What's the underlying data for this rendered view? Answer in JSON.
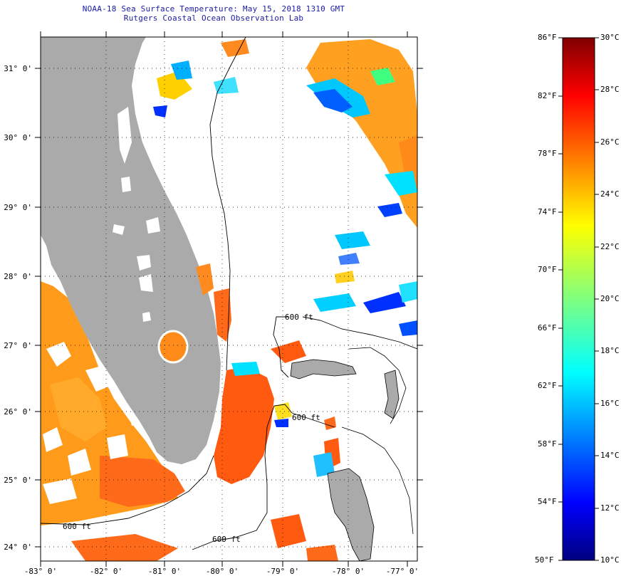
{
  "header": {
    "title_line1": "NOAA-18 Sea Surface Temperature:  May 15, 2018 1310 GMT",
    "title_line2": "Rutgers Coastal Ocean Observation Lab"
  },
  "map": {
    "lon_labels": [
      "-83° 0'",
      "-82° 0'",
      "-81° 0'",
      "-80° 0'",
      "-79° 0'",
      "-78° 0'",
      "-77° 0'"
    ],
    "lat_labels": [
      "31° 0'",
      "30° 0'",
      "29° 0'",
      "28° 0'",
      "27° 0'",
      "26° 0'",
      "25° 0'",
      "24° 0'"
    ],
    "contour_labels": [
      "600 ft",
      "600 ft",
      "600 ft",
      "600 ft"
    ],
    "colors": {
      "land": "#aaaaaa",
      "ocean_cloud": "#ffffff",
      "warm_sst": "#ff6a1a",
      "gulf_sst": "#ff9a1a"
    }
  },
  "colorbar": {
    "fahrenheit_labels": [
      "86°F",
      "82°F",
      "78°F",
      "74°F",
      "70°F",
      "66°F",
      "62°F",
      "58°F",
      "54°F",
      "50°F"
    ],
    "celsius_labels": [
      "30°C",
      "28°C",
      "26°C",
      "24°C",
      "22°C",
      "20°C",
      "18°C",
      "16°C",
      "14°C",
      "12°C",
      "10°C"
    ],
    "range_celsius": [
      10,
      30
    ],
    "range_fahrenheit": [
      50,
      86
    ],
    "colormap": "jet"
  }
}
